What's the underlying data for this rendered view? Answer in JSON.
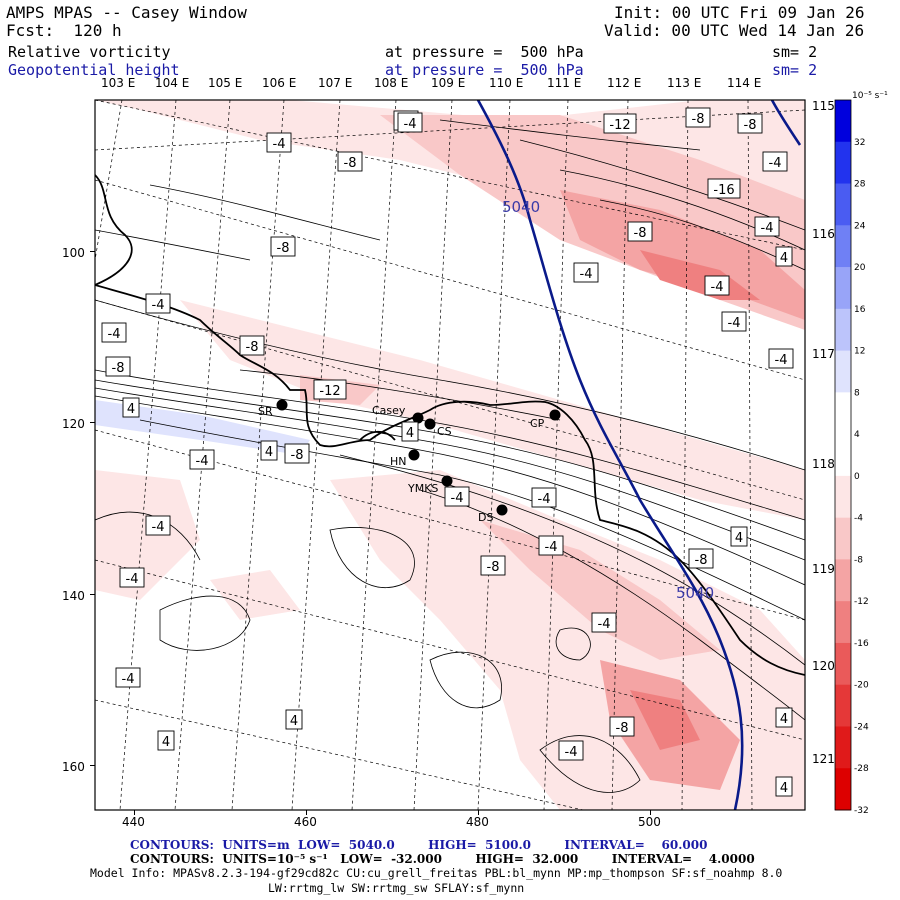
{
  "header": {
    "model": "AMPS MPAS -- Casey Window",
    "forecast": "Fcst:  120 h",
    "init": "Init: 00 UTC Fri 09 Jan 26",
    "valid": "Valid: 00 UTC Wed 14 Jan 26",
    "field1": "Relative vorticity",
    "field2": "Geopotential height",
    "pressure1": "at pressure =  500 hPa",
    "pressure2": "at pressure =  500 hPa",
    "smooth1": "sm= 2",
    "smooth2": "sm= 2"
  },
  "longitude_labels_top": [
    "103 E",
    "104 E",
    "105 E",
    "106 E",
    "107 E",
    "108 E",
    "109 E",
    "110 E",
    "111 E",
    "112 E",
    "113 E",
    "114 E"
  ],
  "longitude_labels_right": [
    "115 E",
    "116 E",
    "117 E",
    "118 E",
    "119 E",
    "120 E",
    "121 E"
  ],
  "y_axis_labels": [
    "100",
    "120",
    "140",
    "160"
  ],
  "x_axis_labels": [
    "440",
    "460",
    "480",
    "500"
  ],
  "colorbar": {
    "units": "10⁻⁵ s⁻¹",
    "levels": [
      "32",
      "28",
      "24",
      "20",
      "16",
      "12",
      "8",
      "4",
      "0",
      "-4",
      "-8",
      "-12",
      "-16",
      "-20",
      "-24",
      "-28",
      "-32"
    ],
    "colors": [
      "#0000dd",
      "#2233ee",
      "#4a5cf2",
      "#6f80f5",
      "#98a4f8",
      "#bcc4fb",
      "#dfe3fd",
      "#ffffff",
      "#ffffff",
      "#fde6e6",
      "#f9c8c8",
      "#f4a4a4",
      "#ef8080",
      "#ea5a5a",
      "#e53838",
      "#e01a1a",
      "#dd0000"
    ]
  },
  "stations": [
    {
      "name": "SR"
    },
    {
      "name": "Casey"
    },
    {
      "name": "CS"
    },
    {
      "name": "CP"
    },
    {
      "name": "HN"
    },
    {
      "name": "YMKS"
    },
    {
      "name": "DS"
    }
  ],
  "height_labels": [
    "5040",
    "5040"
  ],
  "vorticity_labels": [
    "-4",
    "-4",
    "-8",
    "-8",
    "-4",
    "-4",
    "-8",
    "-12",
    "-12",
    "-8",
    "-8",
    "-4",
    "-16",
    "-8",
    "-4",
    "-4",
    "-4",
    "-4",
    "4",
    "-4",
    "-8",
    "4",
    "-4",
    "4",
    "-8",
    "4",
    "-4",
    "-4",
    "-4",
    "-4",
    "-8",
    "-4",
    "4",
    "-8",
    "-4",
    "-4",
    "4",
    "4",
    "4",
    "-8",
    "-4",
    "4",
    "-4"
  ],
  "footer": {
    "contours1": "CONTOURS:  UNITS=m  LOW=  5040.0        HIGH=  5100.0        INTERVAL=    60.000",
    "contours2": "CONTOURS:  UNITS=10⁻⁵ s⁻¹   LOW=  -32.000        HIGH=  32.000        INTERVAL=    4.0000",
    "model_info": "Model Info: MPASv8.2.3-194-gf29cd82c CU:cu_grell_freitas PBL:bl_mynn MP:mp_thompson SF:sf_noahmp 8.0",
    "model_info2": "LW:rrtmg_lw SW:rrtmg_sw SFLAY:sf_mynn"
  }
}
